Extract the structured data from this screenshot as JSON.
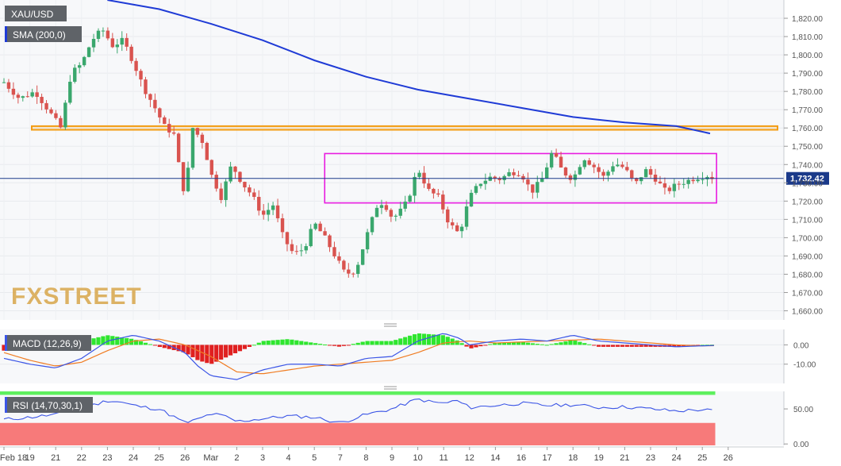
{
  "symbol_label": "XAU/USD",
  "brand": {
    "text_a": "FX",
    "text_b": "STREET",
    "color": "#d8a64a"
  },
  "colors": {
    "up": "#3aa76d",
    "down": "#d9534f",
    "sma": "#1f3bd6",
    "last_price": "#1b3a8a",
    "support_band": "#f39c12",
    "range_box": "#e81ce0",
    "macd_line": "#3b55e6",
    "signal_line": "#f07c22",
    "hist_pos": "#2ee62e",
    "hist_neg": "#e02020",
    "rsi_line": "#3b55e6",
    "rsi_overbought": "#5ef05e",
    "rsi_oversold": "#f77a7a"
  },
  "x_axis": {
    "labels": [
      "Feb 18",
      "19",
      "21",
      "22",
      "23",
      "24",
      "25",
      "26",
      "Mar",
      "2",
      "3",
      "4",
      "5",
      "7",
      "8",
      "9",
      "10",
      "11",
      "12",
      "14",
      "16",
      "17",
      "18",
      "19",
      "21",
      "23",
      "24",
      "25",
      "26"
    ]
  },
  "chart_data": [
    {
      "type": "candlestick",
      "series": [
        {
          "name": "SMA (200,0)",
          "kind": "line"
        },
        {
          "name": "candles",
          "kind": "ohlc"
        }
      ],
      "ylim": [
        1655,
        1830
      ],
      "y_ticks": [
        "1,660.00",
        "1,670.00",
        "1,680.00",
        "1,690.00",
        "1,700.00",
        "1,710.00",
        "1,720.00",
        "1,730.00",
        "1,740.00",
        "1,750.00",
        "1,760.00",
        "1,770.00",
        "1,780.00",
        "1,790.00",
        "1,800.00",
        "1,810.00",
        "1,820.00"
      ],
      "last_price": 1732.42,
      "last_price_label": "1,732.42",
      "support_zone": [
        1759,
        1761
      ],
      "range_box": {
        "x_from": 12.4,
        "x_to": 27.55,
        "low": 1719,
        "high": 1746
      },
      "sma": {
        "x": [
          4,
          6,
          8,
          10,
          12,
          14,
          16,
          18,
          20,
          22,
          24,
          26,
          27.3
        ],
        "y": [
          1830,
          1825,
          1817,
          1808,
          1797,
          1788,
          1781,
          1776,
          1771,
          1766,
          1763,
          1761,
          1757
        ]
      },
      "close_anchors": {
        "x": [
          0,
          0.6,
          1.2,
          1.8,
          2.2,
          2.6,
          3.0,
          3.4,
          3.8,
          4.2,
          4.6,
          5.0,
          5.4,
          5.8,
          6.2,
          6.6,
          6.9,
          7.1,
          7.3,
          7.7,
          8.0,
          8.4,
          8.8,
          9.2,
          9.6,
          10.0,
          10.4,
          10.8,
          11.2,
          11.6,
          12.0,
          12.4,
          12.8,
          13.2,
          13.6,
          14.0,
          14.4,
          14.7,
          14.9,
          15.2,
          15.6,
          16.0,
          16.4,
          16.8,
          17.2,
          17.6,
          18.0,
          18.4,
          18.8,
          19.2,
          19.6,
          20.0,
          20.4,
          20.8,
          21.2,
          21.6,
          22.0,
          22.4,
          22.8,
          23.2,
          23.6,
          24.0,
          24.4,
          24.8,
          25.2,
          25.6,
          26.0,
          26.4,
          26.8,
          27.2,
          27.45
        ],
        "y": [
          1785,
          1776,
          1780,
          1768,
          1760,
          1790,
          1795,
          1808,
          1814,
          1805,
          1808,
          1796,
          1782,
          1772,
          1761,
          1756,
          1725,
          1735,
          1760,
          1752,
          1735,
          1722,
          1740,
          1730,
          1723,
          1712,
          1718,
          1700,
          1691,
          1694,
          1708,
          1700,
          1690,
          1680,
          1682,
          1700,
          1717,
          1720,
          1712,
          1712,
          1720,
          1738,
          1726,
          1722,
          1708,
          1702,
          1722,
          1730,
          1733,
          1732,
          1736,
          1735,
          1725,
          1732,
          1747,
          1736,
          1732,
          1744,
          1739,
          1733,
          1741,
          1738,
          1729,
          1737,
          1732,
          1725,
          1729,
          1731,
          1733,
          1734,
          1732.4
        ]
      }
    },
    {
      "type": "line",
      "title": "MACD (12,26,9)",
      "series": [
        {
          "name": "MACD"
        },
        {
          "name": "Signal"
        },
        {
          "name": "Histogram"
        }
      ],
      "ylim": [
        -20,
        8
      ],
      "y_ticks": [
        "0.00",
        "-10.00"
      ],
      "macd": {
        "x": [
          0,
          1,
          2,
          3,
          4,
          5,
          6,
          7,
          7.5,
          8,
          9,
          10,
          11,
          12,
          13,
          14,
          15,
          16,
          17,
          17.6,
          18,
          19,
          20,
          21,
          22,
          23,
          24,
          25,
          26,
          27,
          27.45
        ],
        "y": [
          -7,
          -10,
          -12,
          -7,
          2,
          5,
          2,
          -4,
          -11,
          -16,
          -18,
          -13,
          -10,
          -10,
          -11,
          -7,
          -6,
          2,
          6,
          3.5,
          0,
          2,
          3,
          2,
          5,
          2,
          1,
          0,
          -1,
          -0.5,
          -0.3
        ]
      },
      "signal": {
        "x": [
          0,
          1,
          2,
          3,
          4,
          5,
          6,
          7,
          8,
          8.5,
          9,
          10,
          11,
          12,
          13,
          14,
          15,
          16,
          17,
          18,
          19,
          20,
          21,
          22,
          23,
          24,
          25,
          26,
          27,
          27.45
        ],
        "y": [
          -4,
          -8,
          -11,
          -9,
          -3,
          2,
          3,
          0,
          -6,
          -10,
          -14,
          -15,
          -13,
          -11,
          -10,
          -9,
          -8,
          -4,
          1,
          2,
          1,
          1.5,
          2,
          2.5,
          3,
          2,
          1,
          0,
          -0.5,
          -0.4
        ]
      }
    },
    {
      "type": "line",
      "title": "RSI (14,70,30,1)",
      "series": [
        {
          "name": "RSI"
        }
      ],
      "ylim": [
        -2,
        75
      ],
      "overbought": 70,
      "oversold": 30,
      "y_ticks": [
        "50.00",
        "0.00"
      ],
      "rsi_anchors": {
        "x": [
          0,
          1,
          2,
          3,
          4,
          4.5,
          5,
          5.5,
          6,
          7,
          7.5,
          8,
          8.5,
          9,
          10,
          11,
          12,
          13,
          13.5,
          14,
          15,
          16,
          16.5,
          17,
          17.5,
          18,
          19,
          20,
          21,
          22,
          23,
          24,
          25,
          26,
          27,
          27.45
        ],
        "y": [
          35,
          38,
          42,
          50,
          62,
          60,
          55,
          52,
          50,
          30,
          35,
          43,
          40,
          32,
          36,
          40,
          38,
          30,
          36,
          42,
          50,
          64,
          60,
          58,
          62,
          52,
          55,
          58,
          55,
          56,
          52,
          53,
          50,
          47,
          49,
          47
        ]
      }
    }
  ]
}
